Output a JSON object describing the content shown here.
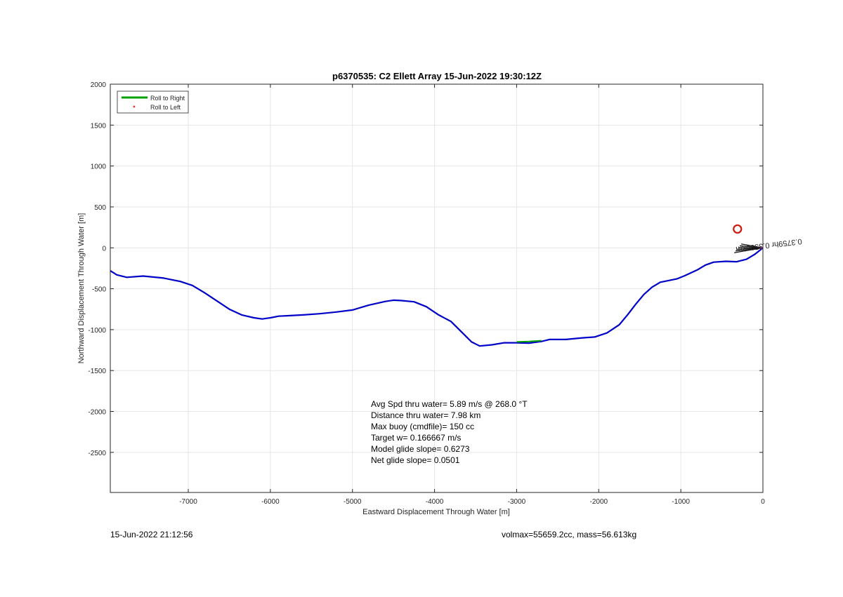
{
  "chart_data": {
    "type": "line",
    "title": "p6370535: C2 Ellett Array 15-Jun-2022 19:30:12Z",
    "xlabel": "Eastward Displacement Through Water [m]",
    "ylabel": "Northward Displacement Through Water [m]",
    "xlim": [
      -7950,
      0
    ],
    "ylim": [
      -2990,
      2000
    ],
    "xticks": [
      -7000,
      -6000,
      -5000,
      -4000,
      -3000,
      -2000,
      -1000,
      0
    ],
    "yticks": [
      2000,
      1500,
      1000,
      500,
      0,
      -500,
      -1000,
      -1500,
      -2000,
      -2500
    ],
    "grid": true,
    "legend_position": "top-left",
    "series": [
      {
        "name": "Roll to Right",
        "color": "#00a000",
        "x": [
          -3000,
          -2850,
          -2700
        ],
        "y": [
          -1150,
          -1145,
          -1135
        ]
      },
      {
        "name": "Roll to Left",
        "color": "#e03030",
        "x": [],
        "y": []
      },
      {
        "name": "",
        "color": "#0000c8",
        "x": [
          -7950,
          -7870,
          -7750,
          -7550,
          -7300,
          -7100,
          -6950,
          -6800,
          -6650,
          -6500,
          -6350,
          -6200,
          -6100,
          -6000,
          -5900,
          -5800,
          -5600,
          -5400,
          -5200,
          -5000,
          -4800,
          -4600,
          -4500,
          -4400,
          -4250,
          -4100,
          -3950,
          -3800,
          -3650,
          -3550,
          -3450,
          -3300,
          -3150,
          -3000,
          -2850,
          -2700,
          -2600,
          -2400,
          -2200,
          -2050,
          -1900,
          -1750,
          -1650,
          -1550,
          -1450,
          -1350,
          -1250,
          -1150,
          -1050,
          -950,
          -800,
          -700,
          -600,
          -450,
          -320,
          -200,
          -100,
          0
        ],
        "y": [
          -280,
          -330,
          -360,
          -345,
          -370,
          -410,
          -460,
          -550,
          -650,
          -750,
          -820,
          -855,
          -870,
          -855,
          -835,
          -830,
          -820,
          -805,
          -785,
          -760,
          -700,
          -655,
          -640,
          -645,
          -660,
          -720,
          -820,
          -900,
          -1050,
          -1150,
          -1200,
          -1185,
          -1160,
          -1160,
          -1165,
          -1145,
          -1120,
          -1120,
          -1100,
          -1090,
          -1040,
          -940,
          -820,
          -690,
          -570,
          -480,
          -420,
          -400,
          -380,
          -340,
          -270,
          -210,
          -175,
          -165,
          -170,
          -140,
          -80,
          0
        ]
      }
    ],
    "markers": [
      {
        "shape": "circle",
        "color": "#cc1a10",
        "x": -310,
        "y": 230
      }
    ],
    "annotations": [
      "Avg Spd thru water=  5.89 m/s @ 268.0 °T",
      "Distance thru water=  7.98 km",
      "Max buoy (cmdfile)= 150 cc",
      "Target w= 0.166667 m/s",
      "Model glide slope= 0.6273",
      "Net glide slope= 0.0501"
    ],
    "rotated_annotation": "0.3759hr 0.3596km"
  },
  "footer": {
    "timestamp": "15-Jun-2022 21:12:56",
    "right": "volmax=55659.2cc, mass=56.613kg"
  },
  "colors": {
    "axis": "#262626",
    "grid": "#e6e6e6"
  }
}
